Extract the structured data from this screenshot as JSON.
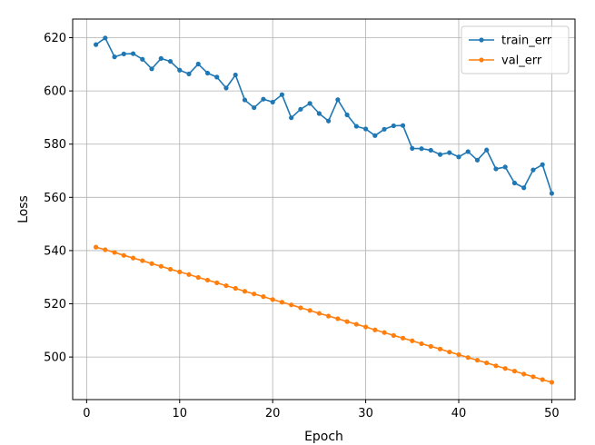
{
  "chart_data": {
    "type": "line",
    "title": "",
    "xlabel": "Epoch",
    "ylabel": "Loss",
    "xlim": [
      -1.5,
      52.5
    ],
    "ylim": [
      484,
      627
    ],
    "xticks": [
      0,
      10,
      20,
      30,
      40,
      50
    ],
    "yticks": [
      500,
      520,
      540,
      560,
      580,
      600,
      620
    ],
    "grid": true,
    "legend_position": "top-right",
    "x": [
      1,
      2,
      3,
      4,
      5,
      6,
      7,
      8,
      9,
      10,
      11,
      12,
      13,
      14,
      15,
      16,
      17,
      18,
      19,
      20,
      21,
      22,
      23,
      24,
      25,
      26,
      27,
      28,
      29,
      30,
      31,
      32,
      33,
      34,
      35,
      36,
      37,
      38,
      39,
      40,
      41,
      42,
      43,
      44,
      45,
      46,
      47,
      48,
      49,
      50
    ],
    "series": [
      {
        "name": "train_err",
        "color": "#1f77b4",
        "values": [
          617.4,
          619.9,
          612.8,
          613.9,
          614.0,
          611.9,
          608.3,
          612.2,
          611.1,
          607.8,
          606.4,
          610.1,
          606.7,
          605.2,
          601.1,
          606.0,
          596.6,
          593.7,
          596.9,
          595.8,
          598.6,
          589.9,
          593.1,
          595.3,
          591.5,
          588.7,
          596.7,
          591.0,
          586.7,
          585.7,
          583.2,
          585.6,
          586.9,
          587.0,
          578.4,
          578.3,
          577.7,
          576.1,
          576.8,
          575.2,
          577.2,
          574.0,
          577.8,
          570.7,
          571.4,
          565.4,
          563.6,
          570.3,
          572.3,
          561.5
        ]
      },
      {
        "name": "val_err",
        "color": "#ff7f0e",
        "values": [
          541.3,
          540.3,
          539.3,
          538.2,
          537.2,
          536.2,
          535.1,
          534.1,
          533.0,
          532.0,
          531.0,
          529.9,
          528.9,
          527.9,
          526.8,
          525.8,
          524.7,
          523.7,
          522.7,
          521.6,
          520.6,
          519.6,
          518.5,
          517.5,
          516.4,
          515.4,
          514.4,
          513.3,
          512.3,
          511.3,
          510.2,
          509.2,
          508.1,
          507.1,
          506.1,
          505.0,
          504.0,
          503.0,
          501.9,
          500.9,
          499.8,
          498.8,
          497.8,
          496.7,
          495.7,
          494.7,
          493.6,
          492.6,
          491.5,
          490.5
        ]
      }
    ]
  }
}
